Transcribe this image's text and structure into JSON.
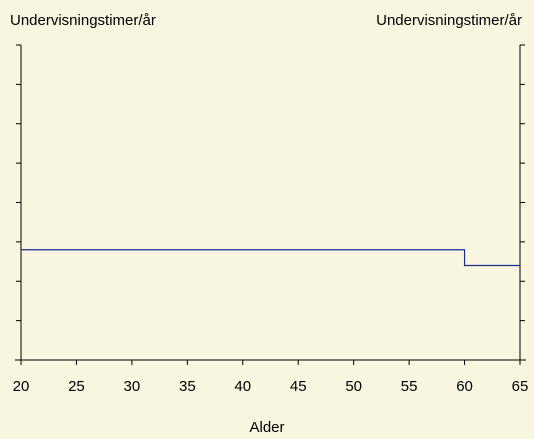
{
  "chart_data": {
    "type": "line",
    "title": "",
    "xlabel": "Alder",
    "ylabel_left": "Undervisningstimer/år",
    "ylabel_right": "Undervisningstimer/år",
    "xlim": [
      20,
      65
    ],
    "ylim": [
      0,
      8
    ],
    "x_ticks": [
      "20",
      "25",
      "30",
      "35",
      "40",
      "45",
      "50",
      "55",
      "60",
      "65"
    ],
    "y_tick_count": 8,
    "y_tick_labels_shown": false,
    "grid": false,
    "legend": "none",
    "series": [
      {
        "step": "post",
        "color": "#1f2d8a",
        "x": [
          20,
          60,
          65
        ],
        "y": [
          2.8,
          2.4,
          2.4
        ]
      }
    ]
  },
  "colors": {
    "background": "#f8f6e1",
    "axis": "#000000",
    "series": "#1f2d8a"
  }
}
